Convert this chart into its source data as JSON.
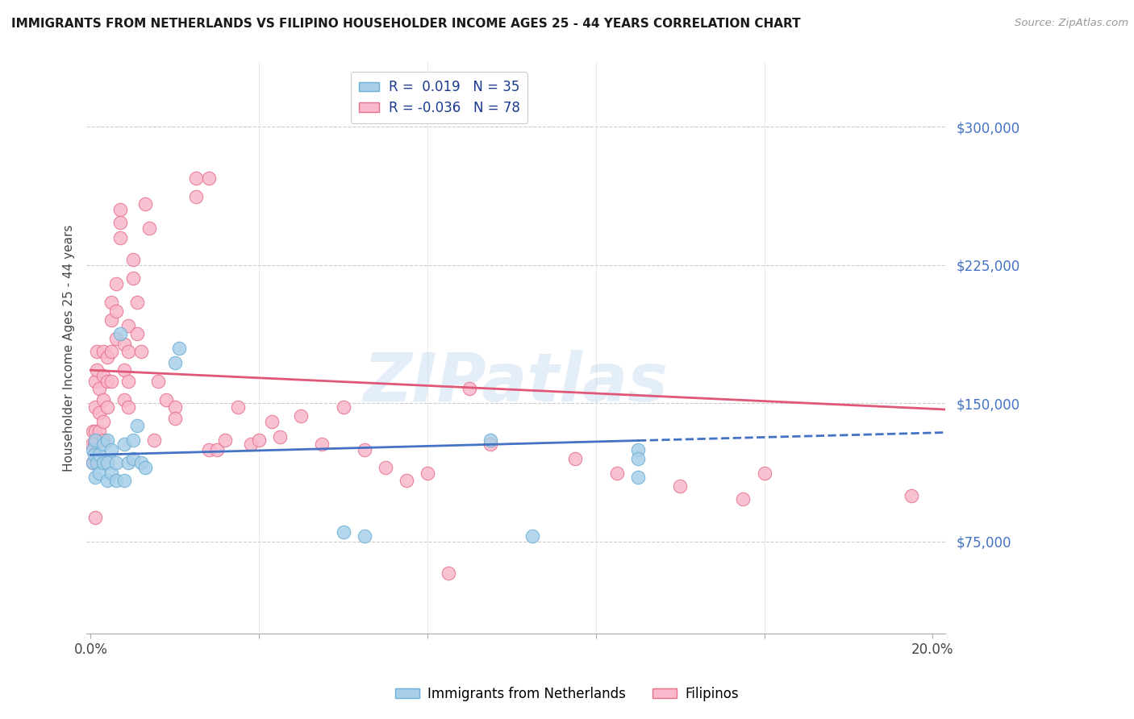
{
  "title": "IMMIGRANTS FROM NETHERLANDS VS FILIPINO HOUSEHOLDER INCOME AGES 25 - 44 YEARS CORRELATION CHART",
  "source": "Source: ZipAtlas.com",
  "ylabel": "Householder Income Ages 25 - 44 years",
  "ytick_values": [
    75000,
    150000,
    225000,
    300000
  ],
  "ytick_labels": [
    "$75,000",
    "$150,000",
    "$225,000",
    "$300,000"
  ],
  "ylim_low": 25000,
  "ylim_high": 335000,
  "xlim_low": -0.001,
  "xlim_high": 0.203,
  "color_nl_face": "#a8cfe8",
  "color_nl_edge": "#6baed6",
  "color_fi_face": "#f9b8cb",
  "color_fi_edge": "#e8708a",
  "color_nl_line": "#4472c4",
  "color_fi_line": "#e05878",
  "color_grid": "#cccccc",
  "color_ytick": "#4472c4",
  "bottom_label_nl": "Immigrants from Netherlands",
  "bottom_label_fi": "Filipinos",
  "nl_x": [
    0.0005,
    0.0005,
    0.0008,
    0.001,
    0.001,
    0.0015,
    0.002,
    0.002,
    0.003,
    0.003,
    0.004,
    0.004,
    0.004,
    0.005,
    0.005,
    0.006,
    0.006,
    0.007,
    0.008,
    0.008,
    0.009,
    0.01,
    0.01,
    0.011,
    0.012,
    0.013,
    0.02,
    0.021,
    0.06,
    0.065,
    0.095,
    0.105,
    0.13,
    0.13,
    0.13
  ],
  "nl_y": [
    125000,
    118000,
    122000,
    130000,
    110000,
    118000,
    122000,
    112000,
    128000,
    118000,
    130000,
    118000,
    108000,
    125000,
    112000,
    118000,
    108000,
    188000,
    128000,
    108000,
    118000,
    130000,
    120000,
    138000,
    118000,
    115000,
    172000,
    180000,
    80000,
    78000,
    130000,
    78000,
    125000,
    120000,
    110000
  ],
  "fi_x": [
    0.0003,
    0.0005,
    0.0005,
    0.0008,
    0.001,
    0.001,
    0.001,
    0.001,
    0.0015,
    0.0015,
    0.002,
    0.002,
    0.002,
    0.002,
    0.003,
    0.003,
    0.003,
    0.003,
    0.003,
    0.004,
    0.004,
    0.004,
    0.005,
    0.005,
    0.005,
    0.005,
    0.006,
    0.006,
    0.006,
    0.007,
    0.007,
    0.007,
    0.008,
    0.008,
    0.008,
    0.009,
    0.009,
    0.009,
    0.009,
    0.01,
    0.01,
    0.011,
    0.011,
    0.012,
    0.013,
    0.014,
    0.015,
    0.016,
    0.018,
    0.02,
    0.02,
    0.025,
    0.025,
    0.028,
    0.028,
    0.03,
    0.032,
    0.035,
    0.038,
    0.04,
    0.043,
    0.045,
    0.05,
    0.055,
    0.06,
    0.065,
    0.07,
    0.075,
    0.08,
    0.085,
    0.09,
    0.095,
    0.115,
    0.125,
    0.14,
    0.155,
    0.16,
    0.195
  ],
  "fi_y": [
    128000,
    135000,
    118000,
    128000,
    162000,
    148000,
    135000,
    88000,
    178000,
    168000,
    158000,
    145000,
    135000,
    120000,
    178000,
    165000,
    152000,
    140000,
    130000,
    175000,
    162000,
    148000,
    205000,
    195000,
    178000,
    162000,
    215000,
    200000,
    185000,
    255000,
    248000,
    240000,
    182000,
    168000,
    152000,
    192000,
    178000,
    162000,
    148000,
    228000,
    218000,
    205000,
    188000,
    178000,
    258000,
    245000,
    130000,
    162000,
    152000,
    148000,
    142000,
    272000,
    262000,
    272000,
    125000,
    125000,
    130000,
    148000,
    128000,
    130000,
    140000,
    132000,
    143000,
    128000,
    148000,
    125000,
    115000,
    108000,
    112000,
    58000,
    158000,
    128000,
    120000,
    112000,
    105000,
    98000,
    112000,
    100000
  ],
  "nl_line_x": [
    0.0,
    0.13,
    0.203
  ],
  "nl_line_y_intercept": 122000,
  "nl_line_slope": 60000,
  "fi_line_y_intercept": 168000,
  "fi_line_slope": -105000
}
